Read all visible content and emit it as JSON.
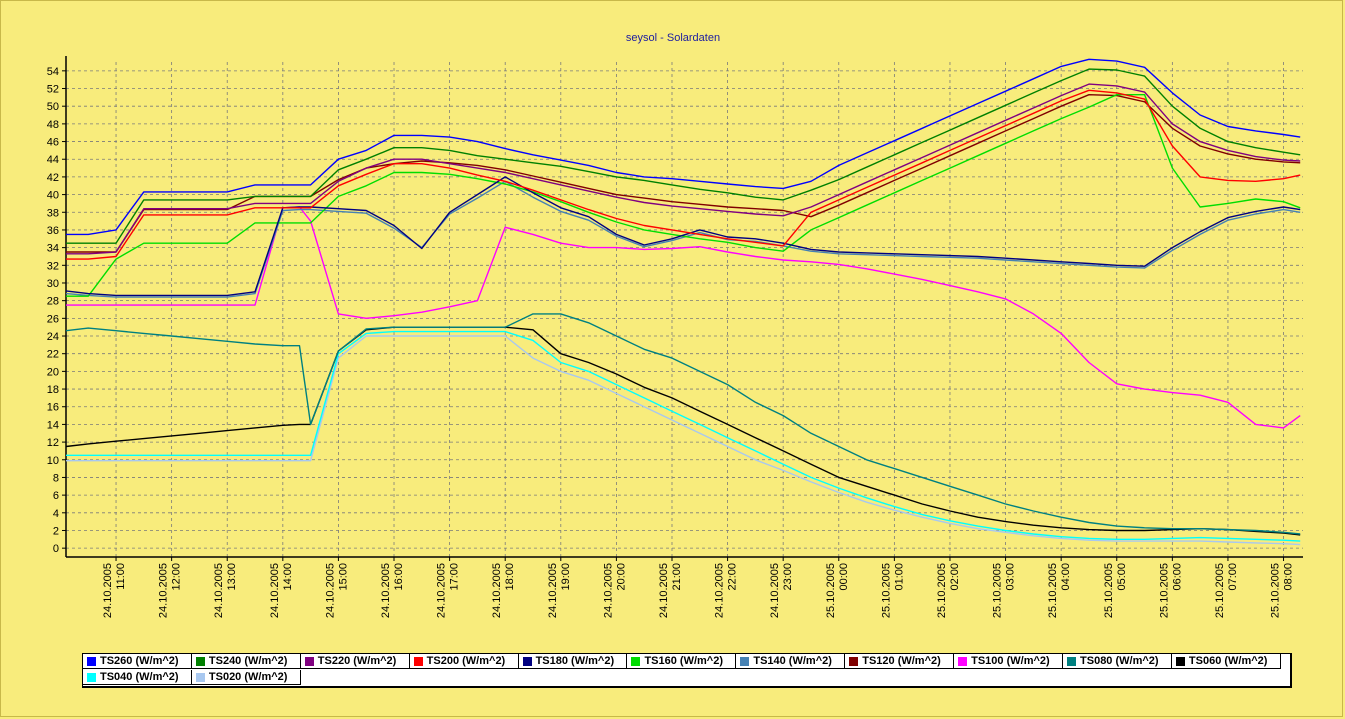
{
  "chart_data": {
    "type": "line",
    "title": "seysol - Solardaten",
    "xlabel": "",
    "ylabel": "",
    "ylim": [
      -1,
      55
    ],
    "y_ticks": [
      0,
      2,
      4,
      6,
      8,
      10,
      12,
      14,
      16,
      18,
      20,
      22,
      24,
      26,
      28,
      30,
      32,
      34,
      36,
      38,
      40,
      42,
      44,
      46,
      48,
      50,
      52,
      54
    ],
    "grid": true,
    "legend_position": "bottom",
    "x_tick_labels": [
      {
        "date": "24.10.2005",
        "time": "11:00"
      },
      {
        "date": "24.10.2005",
        "time": "12:00"
      },
      {
        "date": "24.10.2005",
        "time": "13:00"
      },
      {
        "date": "24.10.2005",
        "time": "14:00"
      },
      {
        "date": "24.10.2005",
        "time": "15:00"
      },
      {
        "date": "24.10.2005",
        "time": "16:00"
      },
      {
        "date": "24.10.2005",
        "time": "17:00"
      },
      {
        "date": "24.10.2005",
        "time": "18:00"
      },
      {
        "date": "24.10.2005",
        "time": "19:00"
      },
      {
        "date": "24.10.2005",
        "time": "20:00"
      },
      {
        "date": "24.10.2005",
        "time": "21:00"
      },
      {
        "date": "24.10.2005",
        "time": "22:00"
      },
      {
        "date": "24.10.2005",
        "time": "23:00"
      },
      {
        "date": "25.10.2005",
        "time": "00:00"
      },
      {
        "date": "25.10.2005",
        "time": "01:00"
      },
      {
        "date": "25.10.2005",
        "time": "02:00"
      },
      {
        "date": "25.10.2005",
        "time": "03:00"
      },
      {
        "date": "25.10.2005",
        "time": "04:00"
      },
      {
        "date": "25.10.2005",
        "time": "05:00"
      },
      {
        "date": "25.10.2005",
        "time": "06:00"
      },
      {
        "date": "25.10.2005",
        "time": "07:00"
      },
      {
        "date": "25.10.2005",
        "time": "08:00"
      }
    ],
    "x_hours": [
      10.1,
      10.5,
      11.0,
      11.5,
      12.0,
      12.5,
      13.0,
      13.5,
      14.0,
      14.3,
      14.5,
      15.0,
      15.5,
      16.0,
      16.5,
      17.0,
      17.5,
      18.0,
      18.5,
      19.0,
      19.5,
      20.0,
      20.5,
      21.0,
      21.5,
      22.0,
      22.5,
      23.0,
      23.5,
      24.0,
      24.5,
      25.0,
      25.5,
      26.0,
      26.5,
      27.0,
      27.5,
      28.0,
      28.5,
      29.0,
      29.5,
      30.0,
      30.5,
      31.0,
      31.5,
      32.0,
      32.3
    ],
    "series": [
      {
        "name": "TS260 (W/m^2)",
        "color": "#0000ff",
        "values": [
          35.5,
          35.5,
          36,
          40.3,
          40.3,
          40.3,
          40.3,
          41.1,
          41.1,
          41.1,
          41.1,
          44,
          45,
          46.7,
          46.7,
          46.5,
          46,
          45.2,
          44.5,
          43.9,
          43.3,
          42.5,
          42,
          41.8,
          41.5,
          41.2,
          40.9,
          40.7,
          41.5,
          43.3,
          44.7,
          46.1,
          47.5,
          48.9,
          50.3,
          51.7,
          53.1,
          54.5,
          55.3,
          55.1,
          54.4,
          51.5,
          49,
          47.7,
          47.2,
          46.8,
          46.5
        ]
      },
      {
        "name": "TS240 (W/m^2)",
        "color": "#008000",
        "values": [
          34.5,
          34.5,
          34.5,
          39.4,
          39.4,
          39.4,
          39.4,
          39.8,
          39.8,
          39.8,
          39.8,
          42.8,
          44,
          45.3,
          45.3,
          45,
          44.4,
          44,
          43.6,
          43.2,
          42.6,
          42,
          41.6,
          41.1,
          40.6,
          40.2,
          39.7,
          39.4,
          40.5,
          41.7,
          43.1,
          44.5,
          45.9,
          47.3,
          48.7,
          50.1,
          51.5,
          52.9,
          54.2,
          54.1,
          53.4,
          50,
          47.5,
          46,
          45.3,
          44.8,
          44.5
        ]
      },
      {
        "name": "TS220 (W/m^2)",
        "color": "#800080",
        "values": [
          33.3,
          33.3,
          33.5,
          38.4,
          38.4,
          38.4,
          38.4,
          39,
          39,
          39,
          39,
          41.5,
          43,
          44,
          44,
          43.5,
          43,
          42.5,
          41.8,
          41.1,
          40.4,
          39.7,
          39.1,
          38.7,
          38.4,
          38.1,
          37.8,
          37.6,
          38.6,
          40,
          41.4,
          42.8,
          44.2,
          45.6,
          47,
          48.4,
          49.8,
          51.2,
          52.5,
          52.3,
          51.6,
          48,
          46,
          45,
          44.3,
          43.9,
          43.8
        ]
      },
      {
        "name": "TS200 (W/m^2)",
        "color": "#ff0000",
        "values": [
          32.7,
          32.7,
          33,
          37.7,
          37.7,
          37.7,
          37.7,
          38.5,
          38.5,
          38.5,
          38.5,
          41,
          42.3,
          43.5,
          43.5,
          43,
          42.2,
          41.5,
          40.5,
          39.4,
          38.3,
          37.3,
          36.5,
          36,
          35.5,
          35,
          34.6,
          34.2,
          38,
          39.4,
          40.8,
          42.2,
          43.6,
          45,
          46.4,
          47.8,
          49.2,
          50.6,
          51.8,
          51.5,
          50.8,
          45.5,
          42,
          41.6,
          41.5,
          41.8,
          42.2
        ]
      },
      {
        "name": "TS180 (W/m^2)",
        "color": "#000080",
        "values": [
          29.1,
          28.8,
          28.6,
          28.6,
          28.6,
          28.6,
          28.6,
          29,
          38.5,
          38.6,
          38.6,
          38.4,
          38.2,
          36.5,
          33.9,
          38,
          40,
          42,
          40.2,
          38.5,
          37.5,
          35.5,
          34.3,
          35,
          36,
          35.2,
          35,
          34.5,
          33.8,
          33.5,
          33.4,
          33.3,
          33.2,
          33.1,
          33,
          32.8,
          32.6,
          32.4,
          32.2,
          32,
          31.9,
          34,
          35.8,
          37.4,
          38.1,
          38.6,
          38.3
        ]
      },
      {
        "name": "TS160 (W/m^2)",
        "color": "#00dd00",
        "values": [
          28.5,
          28.5,
          32.7,
          34.5,
          34.5,
          34.5,
          34.5,
          36.8,
          36.8,
          36.8,
          36.8,
          39.8,
          41,
          42.5,
          42.5,
          42.3,
          41.8,
          41.2,
          40.3,
          39.2,
          38,
          36.9,
          36,
          35.5,
          35,
          34.6,
          34,
          33.6,
          36,
          37.4,
          38.8,
          40.2,
          41.6,
          43,
          44.4,
          45.8,
          47.2,
          48.6,
          49.9,
          51.3,
          51.3,
          43,
          38.6,
          39,
          39.5,
          39.2,
          38.5
        ]
      },
      {
        "name": "TS140 (W/m^2)",
        "color": "#4682b4",
        "values": [
          28.8,
          28.6,
          28.4,
          28.4,
          28.4,
          28.4,
          28.4,
          28.8,
          38.2,
          38.3,
          38.3,
          38.1,
          37.9,
          36.2,
          34,
          37.8,
          39.6,
          41.5,
          39.7,
          38.1,
          37.1,
          35.3,
          34.1,
          34.8,
          35.7,
          34.9,
          34.7,
          34.2,
          33.6,
          33.3,
          33.2,
          33.1,
          33,
          32.9,
          32.8,
          32.6,
          32.4,
          32.2,
          32,
          31.8,
          31.7,
          33.7,
          35.5,
          37.1,
          37.8,
          38.3,
          38
        ]
      },
      {
        "name": "TS120 (W/m^2)",
        "color": "#800000",
        "values": [
          33.5,
          33.5,
          33.5,
          38.3,
          38.3,
          38.3,
          38.3,
          39.8,
          39.8,
          39.8,
          39.8,
          41.7,
          43,
          43.5,
          43.8,
          43.6,
          43.3,
          42.8,
          42.1,
          41.4,
          40.7,
          40,
          39.6,
          39.2,
          38.9,
          38.6,
          38.4,
          38.2,
          37.5,
          38.8,
          40.2,
          41.6,
          43,
          44.4,
          45.8,
          47.2,
          48.6,
          50,
          51.3,
          51.2,
          50.5,
          47.5,
          45.5,
          44.6,
          44,
          43.7,
          43.6
        ]
      },
      {
        "name": "TS100 (W/m^2)",
        "color": "#ff00ff",
        "values": [
          27.5,
          27.5,
          27.5,
          27.5,
          27.5,
          27.5,
          27.5,
          27.5,
          38.5,
          38.6,
          37,
          26.5,
          26,
          26.3,
          26.7,
          27.3,
          28,
          36.3,
          35.5,
          34.5,
          34,
          34,
          33.8,
          33.9,
          34.1,
          33.5,
          33,
          32.6,
          32.4,
          32.1,
          31.6,
          31,
          30.4,
          29.7,
          29,
          28.2,
          26.5,
          24.3,
          21,
          18.6,
          18,
          17.6,
          17.3,
          16.5,
          14,
          13.6,
          15
        ]
      },
      {
        "name": "TS080 (W/m^2)",
        "color": "#008080",
        "values": [
          24.6,
          24.9,
          24.6,
          24.3,
          24,
          23.7,
          23.4,
          23.1,
          22.9,
          22.9,
          14,
          22.3,
          24.8,
          25,
          25,
          25,
          25,
          25,
          26.5,
          26.5,
          25.5,
          24,
          22.5,
          21.5,
          20,
          18.5,
          16.5,
          15,
          13,
          11.5,
          10,
          9,
          8,
          7,
          6,
          5,
          4.2,
          3.5,
          2.9,
          2.5,
          2.3,
          2.2,
          2.2,
          2.1,
          2,
          1.8,
          1.6
        ]
      },
      {
        "name": "TS060 (W/m^2)",
        "color": "#000000",
        "values": [
          11.5,
          11.8,
          12.1,
          12.4,
          12.7,
          13,
          13.3,
          13.6,
          13.9,
          14,
          14,
          22.3,
          24.7,
          25,
          25,
          25,
          25,
          25,
          24.7,
          22,
          21,
          19.7,
          18.2,
          17,
          15.5,
          14,
          12.5,
          11,
          9.5,
          8,
          7,
          6,
          5,
          4.2,
          3.5,
          3,
          2.6,
          2.3,
          2.1,
          2,
          2,
          2.1,
          2.2,
          2.1,
          1.9,
          1.7,
          1.5
        ]
      },
      {
        "name": "TS040 (W/m^2)",
        "color": "#00ffff",
        "values": [
          10.5,
          10.5,
          10.5,
          10.5,
          10.5,
          10.5,
          10.5,
          10.5,
          10.5,
          10.5,
          10.5,
          22,
          24.3,
          24.5,
          24.5,
          24.5,
          24.5,
          24.5,
          23.5,
          21,
          20,
          18.5,
          17,
          15.5,
          14,
          12.5,
          11,
          9.5,
          8,
          6.8,
          5.7,
          4.7,
          3.8,
          3.1,
          2.5,
          2,
          1.6,
          1.3,
          1.1,
          1,
          1,
          1.1,
          1.2,
          1.1,
          1,
          0.9,
          0.8
        ]
      },
      {
        "name": "TS020 (W/m^2)",
        "color": "#a8c8f0",
        "values": [
          9.9,
          9.9,
          9.9,
          9.9,
          9.9,
          9.9,
          9.9,
          9.9,
          9.9,
          9.9,
          9.9,
          21.5,
          24,
          24,
          24,
          24,
          24,
          24,
          21.5,
          20,
          19,
          17.5,
          16,
          14.5,
          13,
          11.5,
          10,
          8.8,
          7.5,
          6.3,
          5.2,
          4.3,
          3.5,
          2.8,
          2.2,
          1.8,
          1.4,
          1.1,
          0.9,
          0.8,
          0.8,
          0.8,
          0.8,
          0.7,
          0.6,
          0.5,
          0.4
        ]
      }
    ]
  }
}
